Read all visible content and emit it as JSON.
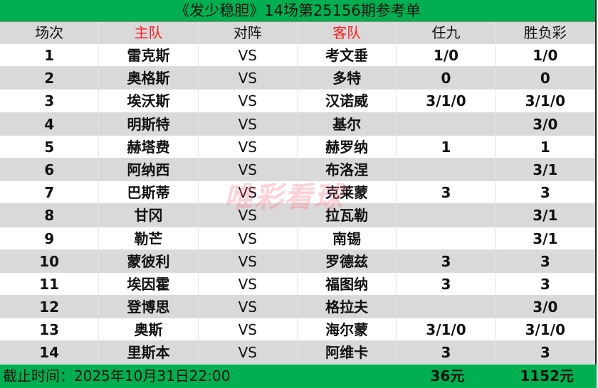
{
  "title": "《发少稳胆》14场第25156期参考单",
  "headers": [
    "场次",
    "主队",
    "对阵",
    "客队",
    "任九",
    "胜负彩"
  ],
  "rows": [
    [
      "1",
      "雷克斯",
      "VS",
      "考文垂",
      "1/0",
      "1/0"
    ],
    [
      "2",
      "奥格斯",
      "VS",
      "多特",
      "0",
      "0"
    ],
    [
      "3",
      "埃沃斯",
      "VS",
      "汉诺威",
      "3/1/0",
      "3/1/0"
    ],
    [
      "4",
      "明斯特",
      "VS",
      "基尔",
      "",
      "3/0"
    ],
    [
      "5",
      "赫塔费",
      "VS",
      "赫罗纳",
      "1",
      "1"
    ],
    [
      "6",
      "阿纳西",
      "VS",
      "布洛涅",
      "",
      "3/1"
    ],
    [
      "7",
      "巴斯蒂",
      "VS",
      "克莱蒙",
      "3",
      "3"
    ],
    [
      "8",
      "甘冈",
      "VS",
      "拉瓦勒",
      "",
      "3/1"
    ],
    [
      "9",
      "勒芒",
      "VS",
      "南锡",
      "",
      "3/1"
    ],
    [
      "10",
      "蒙彼利",
      "VS",
      "罗德兹",
      "3",
      "3"
    ],
    [
      "11",
      "埃因霍",
      "VS",
      "福图纳",
      "3",
      "3"
    ],
    [
      "12",
      "登博思",
      "VS",
      "格拉夫",
      "",
      "3/0"
    ],
    [
      "13",
      "奥斯",
      "VS",
      "海尔蒙",
      "3/1/0",
      "3/1/0"
    ],
    [
      "14",
      "里斯本",
      "VS",
      "阿维卡",
      "3",
      "3"
    ]
  ],
  "footer": {
    "deadline": "截止时间：2025年10月31日22:00",
    "r9_price": "36元",
    "sfc_price": "1152元"
  },
  "watermark": "唯彩看球",
  "colors": {
    "green": "#00b050",
    "gray": "#d9d9d9",
    "red": "#ff1e1e"
  }
}
